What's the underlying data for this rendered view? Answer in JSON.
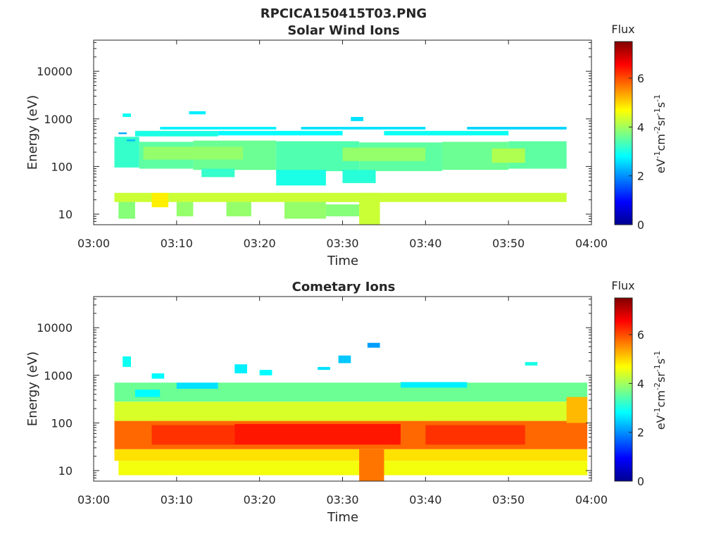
{
  "figure_title": "RPCICA150415T03.PNG",
  "chart_data": [
    {
      "type": "heatmap",
      "title": "Solar Wind Ions",
      "xlabel": "Time",
      "ylabel": "Energy (eV)",
      "x_range": [
        "03:00",
        "04:00"
      ],
      "x_tick_labels": [
        "03:00",
        "03:10",
        "03:20",
        "03:30",
        "03:40",
        "03:50",
        "04:00"
      ],
      "y_scale": "log",
      "y_range": [
        6,
        45000
      ],
      "y_tick_labels": [
        "10",
        "100",
        "1000",
        "10000"
      ],
      "colorbar": {
        "title": "Flux",
        "label": "eV-1cm-2sr-1s-1",
        "range": [
          0,
          7.5
        ],
        "ticks": [
          "0",
          "2",
          "4",
          "6"
        ],
        "colormap": "jet"
      },
      "cells": [
        {
          "t0": 2.5,
          "t1": 5.5,
          "e0": 95,
          "e1": 420,
          "v": 3.2
        },
        {
          "t0": 5.5,
          "t1": 12,
          "e0": 90,
          "e1": 330,
          "v": 3.5
        },
        {
          "t0": 12,
          "t1": 22,
          "e0": 85,
          "e1": 350,
          "v": 3.6
        },
        {
          "t0": 22,
          "t1": 32,
          "e0": 80,
          "e1": 340,
          "v": 3.4
        },
        {
          "t0": 32,
          "t1": 42,
          "e0": 80,
          "e1": 320,
          "v": 3.5
        },
        {
          "t0": 42,
          "t1": 50,
          "e0": 85,
          "e1": 330,
          "v": 3.6
        },
        {
          "t0": 50,
          "t1": 57,
          "e0": 90,
          "e1": 340,
          "v": 3.5
        },
        {
          "t0": 6,
          "t1": 18,
          "e0": 140,
          "e1": 260,
          "v": 3.9
        },
        {
          "t0": 30,
          "t1": 40,
          "e0": 130,
          "e1": 250,
          "v": 3.9
        },
        {
          "t0": 48,
          "t1": 52,
          "e0": 120,
          "e1": 240,
          "v": 4.1
        },
        {
          "t0": 13,
          "t1": 17,
          "e0": 60,
          "e1": 90,
          "v": 3.2
        },
        {
          "t0": 22,
          "t1": 28,
          "e0": 40,
          "e1": 85,
          "v": 3.0
        },
        {
          "t0": 30,
          "t1": 34,
          "e0": 45,
          "e1": 85,
          "v": 3.1
        },
        {
          "t0": 2.5,
          "t1": 57,
          "e0": 18,
          "e1": 28,
          "v": 4.3
        },
        {
          "t0": 7,
          "t1": 9,
          "e0": 14,
          "e1": 28,
          "v": 4.8
        },
        {
          "t0": 32,
          "t1": 34.5,
          "e0": 6,
          "e1": 28,
          "v": 4.3
        },
        {
          "t0": 3,
          "t1": 5,
          "e0": 8,
          "e1": 18,
          "v": 3.8
        },
        {
          "t0": 10,
          "t1": 12,
          "e0": 9,
          "e1": 18,
          "v": 3.9
        },
        {
          "t0": 16,
          "t1": 19,
          "e0": 9,
          "e1": 18,
          "v": 3.9
        },
        {
          "t0": 23,
          "t1": 28,
          "e0": 8,
          "e1": 18,
          "v": 3.9
        },
        {
          "t0": 28,
          "t1": 32,
          "e0": 9,
          "e1": 16,
          "v": 3.8
        },
        {
          "t0": 5,
          "t1": 15,
          "e0": 430,
          "e1": 560,
          "v": 3.0
        },
        {
          "t0": 15,
          "t1": 30,
          "e0": 450,
          "e1": 560,
          "v": 2.8
        },
        {
          "t0": 35,
          "t1": 50,
          "e0": 450,
          "e1": 560,
          "v": 2.9
        },
        {
          "t0": 8,
          "t1": 22,
          "e0": 600,
          "e1": 680,
          "v": 2.7
        },
        {
          "t0": 25,
          "t1": 40,
          "e0": 600,
          "e1": 680,
          "v": 2.6
        },
        {
          "t0": 45,
          "t1": 57,
          "e0": 600,
          "e1": 680,
          "v": 2.5
        },
        {
          "t0": 3.5,
          "t1": 4.5,
          "e0": 1100,
          "e1": 1300,
          "v": 2.9
        },
        {
          "t0": 11.5,
          "t1": 13.5,
          "e0": 1250,
          "e1": 1450,
          "v": 2.7
        },
        {
          "t0": 31,
          "t1": 32.5,
          "e0": 900,
          "e1": 1100,
          "v": 2.6
        },
        {
          "t0": 3,
          "t1": 4,
          "e0": 480,
          "e1": 520,
          "v": 2.2
        },
        {
          "t0": 4,
          "t1": 5,
          "e0": 340,
          "e1": 370,
          "v": 2.3
        }
      ]
    },
    {
      "type": "heatmap",
      "title": "Cometary Ions",
      "xlabel": "Time",
      "ylabel": "Energy (eV)",
      "x_range": [
        "03:00",
        "04:00"
      ],
      "x_tick_labels": [
        "03:00",
        "03:10",
        "03:20",
        "03:30",
        "03:40",
        "03:50",
        "04:00"
      ],
      "y_scale": "log",
      "y_range": [
        6,
        45000
      ],
      "y_tick_labels": [
        "10",
        "100",
        "1000",
        "10000"
      ],
      "colorbar": {
        "title": "Flux",
        "label": "eV-1cm-2sr-1s-1",
        "range": [
          0,
          7.5
        ],
        "ticks": [
          "0",
          "2",
          "4",
          "6"
        ],
        "colormap": "jet"
      },
      "cells": [
        {
          "t0": 2.5,
          "t1": 59.5,
          "e0": 280,
          "e1": 700,
          "v": 3.6
        },
        {
          "t0": 2.5,
          "t1": 59.5,
          "e0": 110,
          "e1": 280,
          "v": 4.4
        },
        {
          "t0": 2.5,
          "t1": 59.5,
          "e0": 28,
          "e1": 110,
          "v": 5.8
        },
        {
          "t0": 2.5,
          "t1": 59.5,
          "e0": 16,
          "e1": 28,
          "v": 4.9
        },
        {
          "t0": 3,
          "t1": 59.5,
          "e0": 8,
          "e1": 16,
          "v": 4.6
        },
        {
          "t0": 7,
          "t1": 17,
          "e0": 35,
          "e1": 90,
          "v": 6.2
        },
        {
          "t0": 17,
          "t1": 37,
          "e0": 35,
          "e1": 95,
          "v": 6.4
        },
        {
          "t0": 40,
          "t1": 52,
          "e0": 35,
          "e1": 90,
          "v": 6.2
        },
        {
          "t0": 32,
          "t1": 35,
          "e0": 6,
          "e1": 28,
          "v": 5.7
        },
        {
          "t0": 57,
          "t1": 59.5,
          "e0": 100,
          "e1": 350,
          "v": 5.2
        },
        {
          "t0": 5,
          "t1": 8,
          "e0": 350,
          "e1": 500,
          "v": 2.8
        },
        {
          "t0": 10,
          "t1": 15,
          "e0": 520,
          "e1": 700,
          "v": 2.6
        },
        {
          "t0": 37,
          "t1": 45,
          "e0": 550,
          "e1": 720,
          "v": 2.7
        },
        {
          "t0": 3.5,
          "t1": 4.5,
          "e0": 1500,
          "e1": 2500,
          "v": 2.9
        },
        {
          "t0": 7,
          "t1": 8.5,
          "e0": 850,
          "e1": 1100,
          "v": 2.8
        },
        {
          "t0": 17,
          "t1": 18.5,
          "e0": 1100,
          "e1": 1700,
          "v": 2.7
        },
        {
          "t0": 20,
          "t1": 21.5,
          "e0": 1000,
          "e1": 1300,
          "v": 2.8
        },
        {
          "t0": 27,
          "t1": 28.5,
          "e0": 1300,
          "e1": 1500,
          "v": 2.6
        },
        {
          "t0": 29.5,
          "t1": 31,
          "e0": 1800,
          "e1": 2600,
          "v": 2.4
        },
        {
          "t0": 33,
          "t1": 34.5,
          "e0": 3800,
          "e1": 4800,
          "v": 2.1
        },
        {
          "t0": 52,
          "t1": 53.5,
          "e0": 1600,
          "e1": 1900,
          "v": 3.0
        }
      ]
    }
  ]
}
